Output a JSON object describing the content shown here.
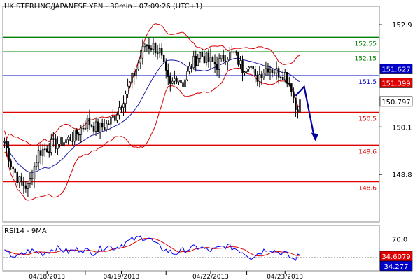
{
  "chart_data": [
    {
      "type": "candlestick",
      "title": "UK STERLING/JAPANESE YEN - 30min - 07:09:26 (UTC+1)",
      "ylim": [
        147.5,
        153.4
      ],
      "y_ticks": [
        "152.9",
        "150.1",
        "148.8"
      ],
      "x_ticks": [
        "04/18/2013",
        "04/19/2013",
        "04/22/2013",
        "04/23/2013"
      ],
      "bars": 140,
      "bars_per_day": 38,
      "x_tick_bars": [
        20,
        55,
        97,
        132
      ],
      "price_path": [
        [
          0,
          149.7
        ],
        [
          3,
          149.1
        ],
        [
          7,
          148.6
        ],
        [
          11,
          148.45
        ],
        [
          16,
          149.4
        ],
        [
          22,
          149.6
        ],
        [
          28,
          149.7
        ],
        [
          33,
          149.85
        ],
        [
          39,
          150.25
        ],
        [
          44,
          150.05
        ],
        [
          48,
          150.15
        ],
        [
          52,
          150.4
        ],
        [
          56,
          150.9
        ],
        [
          60,
          151.4
        ],
        [
          64,
          152.0
        ],
        [
          66,
          152.35
        ],
        [
          70,
          152.3
        ],
        [
          73,
          152.15
        ],
        [
          76,
          151.5
        ],
        [
          78,
          151.2
        ],
        [
          81,
          151.5
        ],
        [
          84,
          151.3
        ],
        [
          88,
          151.8
        ],
        [
          92,
          152.1
        ],
        [
          96,
          151.9
        ],
        [
          100,
          151.8
        ],
        [
          104,
          152.05
        ],
        [
          108,
          152.1
        ],
        [
          112,
          151.7
        ],
        [
          115,
          151.9
        ],
        [
          118,
          151.4
        ],
        [
          121,
          151.6
        ],
        [
          124,
          151.75
        ],
        [
          128,
          151.6
        ],
        [
          132,
          151.55
        ],
        [
          135,
          151.2
        ],
        [
          137,
          150.6
        ],
        [
          139,
          150.75
        ]
      ],
      "horizontal_levels": [
        {
          "label": "152.55",
          "value": 152.55,
          "color": "#008000"
        },
        {
          "label": "152.15",
          "value": 152.15,
          "color": "#008000"
        },
        {
          "label": "151.5",
          "value": 151.5,
          "color": "#0000c8"
        },
        {
          "label": "150.5",
          "value": 150.5,
          "color": "#e00000"
        },
        {
          "label": "149.6",
          "value": 149.6,
          "color": "#e00000"
        },
        {
          "label": "148.6",
          "value": 148.6,
          "color": "#e00000"
        }
      ],
      "price_tags": [
        {
          "label": "151.627",
          "value": 151.627,
          "bg": "#0000c8",
          "fg": "#ffffff"
        },
        {
          "label": "151.399",
          "value": 151.399,
          "bg": "#e00000",
          "fg": "#ffffff"
        },
        {
          "label": "150.797",
          "value": 150.797,
          "bg": "#ffffff",
          "fg": "#000000"
        }
      ],
      "indicators": [
        "Bollinger Bands",
        "Moving Average"
      ],
      "forecast_arrow": {
        "from_bar": 137,
        "to_bar": 146,
        "via_value": 151.2,
        "peak_bar": 141,
        "end_value": 149.75,
        "color": "#0000a0"
      }
    },
    {
      "type": "line",
      "title": "RSI14 - 9MA",
      "ylim": [
        0,
        100
      ],
      "y_ticks": [
        "70.0"
      ],
      "series": [
        {
          "name": "RSI14",
          "color": "#0000ff"
        },
        {
          "name": "9MA",
          "color": "#e00000"
        }
      ],
      "rsi_path": [
        [
          0,
          40
        ],
        [
          6,
          30
        ],
        [
          12,
          45
        ],
        [
          18,
          38
        ],
        [
          24,
          50
        ],
        [
          30,
          42
        ],
        [
          36,
          48
        ],
        [
          42,
          40
        ],
        [
          48,
          55
        ],
        [
          52,
          50
        ],
        [
          56,
          60
        ],
        [
          60,
          68
        ],
        [
          64,
          74
        ],
        [
          68,
          72
        ],
        [
          72,
          55
        ],
        [
          76,
          45
        ],
        [
          80,
          38
        ],
        [
          84,
          45
        ],
        [
          88,
          50
        ],
        [
          92,
          52
        ],
        [
          96,
          44
        ],
        [
          100,
          48
        ],
        [
          104,
          55
        ],
        [
          108,
          50
        ],
        [
          112,
          42
        ],
        [
          116,
          30
        ],
        [
          120,
          40
        ],
        [
          124,
          50
        ],
        [
          128,
          42
        ],
        [
          132,
          38
        ],
        [
          136,
          25
        ],
        [
          139,
          34.3
        ]
      ],
      "price_tags": [
        {
          "label": "34.6079",
          "value": 34.6079,
          "bg": "#e00000",
          "fg": "#ffffff"
        },
        {
          "label": "34.277",
          "value": 34.277,
          "bg": "#0000c8",
          "fg": "#ffffff"
        }
      ]
    }
  ]
}
